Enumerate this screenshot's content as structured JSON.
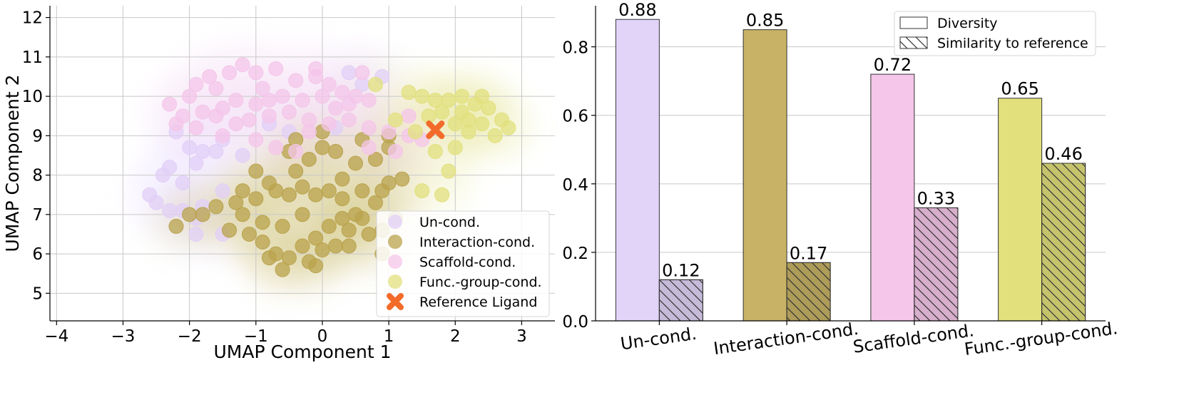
{
  "chart_data": [
    {
      "type": "scatter",
      "title": "",
      "xlabel": "UMAP Component 1",
      "ylabel": "UMAP Component 2",
      "xlim": [
        -4.1,
        3.5
      ],
      "ylim": [
        4.3,
        12.3
      ],
      "xticks": [
        "−4",
        "−3",
        "−2",
        "−1",
        "0",
        "1",
        "2",
        "3"
      ],
      "yticks": [
        "5",
        "6",
        "7",
        "8",
        "9",
        "10",
        "11",
        "12"
      ],
      "grid": true,
      "legend_position": "lower-right",
      "series": [
        {
          "name": "Un-cond.",
          "color": "#e2cff7",
          "points": [
            [
              -2.2,
              9.1
            ],
            [
              -2.0,
              8.7
            ],
            [
              -1.8,
              8.6
            ],
            [
              -1.6,
              8.6
            ],
            [
              -1.9,
              8.3
            ],
            [
              -2.3,
              8.2
            ],
            [
              -2.6,
              7.5
            ],
            [
              -2.5,
              7.3
            ],
            [
              -2.3,
              7.1
            ],
            [
              -2.1,
              7.1
            ],
            [
              -1.9,
              6.9
            ],
            [
              -1.8,
              7.2
            ],
            [
              -1.5,
              8.9
            ],
            [
              -1.2,
              8.5
            ],
            [
              -0.8,
              9.3
            ],
            [
              -0.5,
              9.1
            ],
            [
              0.2,
              9.2
            ],
            [
              0.4,
              10.6
            ],
            [
              0.6,
              10.3
            ],
            [
              0.9,
              10.5
            ],
            [
              -1.9,
              6.5
            ],
            [
              -1.5,
              6.5
            ],
            [
              -2.4,
              8.0
            ],
            [
              -2.1,
              7.8
            ],
            [
              -1.5,
              7.6
            ]
          ]
        },
        {
          "name": "Interaction-cond.",
          "color": "#b9a34c",
          "points": [
            [
              -2.2,
              6.7
            ],
            [
              -2.0,
              7.0
            ],
            [
              -1.8,
              7.0
            ],
            [
              -1.6,
              7.2
            ],
            [
              -1.3,
              7.3
            ],
            [
              -1.2,
              7.6
            ],
            [
              -1.0,
              7.4
            ],
            [
              -0.8,
              7.8
            ],
            [
              -0.7,
              7.6
            ],
            [
              -0.5,
              7.5
            ],
            [
              -0.4,
              8.1
            ],
            [
              -0.3,
              7.7
            ],
            [
              -0.1,
              7.5
            ],
            [
              0.1,
              7.6
            ],
            [
              0.3,
              7.4
            ],
            [
              0.6,
              7.6
            ],
            [
              0.9,
              7.6
            ],
            [
              1.0,
              7.8
            ],
            [
              1.2,
              7.9
            ],
            [
              -1.0,
              8.1
            ],
            [
              -0.5,
              8.6
            ],
            [
              0.0,
              8.7
            ],
            [
              0.2,
              8.6
            ],
            [
              0.5,
              8.3
            ],
            [
              0.8,
              8.4
            ],
            [
              1.0,
              8.7
            ],
            [
              -1.4,
              6.6
            ],
            [
              -1.1,
              6.5
            ],
            [
              -0.9,
              6.3
            ],
            [
              -0.7,
              6.0
            ],
            [
              -0.5,
              5.9
            ],
            [
              -0.3,
              6.2
            ],
            [
              -0.1,
              6.4
            ],
            [
              0.1,
              6.7
            ],
            [
              0.3,
              6.9
            ],
            [
              0.5,
              7.0
            ],
            [
              0.7,
              6.5
            ],
            [
              0.9,
              6.6
            ],
            [
              -0.6,
              5.6
            ],
            [
              -0.8,
              5.9
            ],
            [
              -0.2,
              5.8
            ],
            [
              0.0,
              6.1
            ],
            [
              0.2,
              6.2
            ],
            [
              -1.2,
              7.0
            ],
            [
              -0.9,
              6.8
            ],
            [
              -0.6,
              6.7
            ],
            [
              -0.3,
              7.0
            ],
            [
              0.4,
              6.6
            ],
            [
              0.6,
              6.9
            ],
            [
              0.8,
              7.3
            ],
            [
              -0.1,
              5.7
            ],
            [
              0.4,
              6.2
            ],
            [
              0.9,
              6.0
            ],
            [
              1.1,
              6.9
            ],
            [
              -0.4,
              8.9
            ],
            [
              0.0,
              9.1
            ],
            [
              0.6,
              8.9
            ],
            [
              1.0,
              9.0
            ],
            [
              0.3,
              7.9
            ],
            [
              -0.2,
              8.4
            ]
          ]
        },
        {
          "name": "Scaffold-cond.",
          "color": "#f4c6e9",
          "points": [
            [
              -2.0,
              10.0
            ],
            [
              -1.9,
              10.3
            ],
            [
              -1.7,
              10.5
            ],
            [
              -1.4,
              10.6
            ],
            [
              -1.2,
              10.8
            ],
            [
              -1.0,
              10.6
            ],
            [
              -0.7,
              10.7
            ],
            [
              -0.4,
              10.4
            ],
            [
              -0.1,
              10.5
            ],
            [
              0.1,
              10.3
            ],
            [
              0.3,
              10.1
            ],
            [
              0.5,
              10.0
            ],
            [
              -2.3,
              9.8
            ],
            [
              -2.1,
              9.5
            ],
            [
              -1.8,
              9.6
            ],
            [
              -1.5,
              9.7
            ],
            [
              -1.3,
              9.9
            ],
            [
              -1.0,
              9.8
            ],
            [
              -0.8,
              9.9
            ],
            [
              -0.6,
              10.0
            ],
            [
              -0.3,
              9.9
            ],
            [
              0.0,
              10.0
            ],
            [
              0.2,
              9.7
            ],
            [
              0.4,
              9.8
            ],
            [
              0.7,
              9.9
            ],
            [
              -2.2,
              9.3
            ],
            [
              -1.9,
              9.2
            ],
            [
              -1.6,
              9.5
            ],
            [
              -1.3,
              9.3
            ],
            [
              -1.1,
              9.4
            ],
            [
              -0.8,
              9.5
            ],
            [
              -0.5,
              9.6
            ],
            [
              -0.2,
              9.4
            ],
            [
              0.1,
              9.3
            ],
            [
              0.4,
              9.4
            ],
            [
              0.7,
              9.2
            ],
            [
              1.0,
              9.1
            ],
            [
              1.3,
              9.0
            ],
            [
              -1.0,
              8.9
            ],
            [
              -0.7,
              8.7
            ],
            [
              -0.4,
              8.6
            ],
            [
              0.7,
              8.7
            ],
            [
              1.1,
              8.6
            ],
            [
              1.5,
              8.9
            ],
            [
              1.3,
              9.5
            ],
            [
              -1.6,
              10.2
            ],
            [
              -0.9,
              10.2
            ],
            [
              -0.1,
              10.7
            ],
            [
              0.6,
              10.6
            ],
            [
              -1.5,
              9.0
            ],
            [
              -0.2,
              9.1
            ]
          ]
        },
        {
          "name": "Func.-group-cond.",
          "color": "#e1e07d",
          "points": [
            [
              0.8,
              10.3
            ],
            [
              1.3,
              10.1
            ],
            [
              1.5,
              10.0
            ],
            [
              1.7,
              9.9
            ],
            [
              1.9,
              9.9
            ],
            [
              2.1,
              10.0
            ],
            [
              2.3,
              9.8
            ],
            [
              2.5,
              9.7
            ],
            [
              2.4,
              10.0
            ],
            [
              2.7,
              9.4
            ],
            [
              2.8,
              9.2
            ],
            [
              2.6,
              9.0
            ],
            [
              2.0,
              9.3
            ],
            [
              2.2,
              9.4
            ],
            [
              1.6,
              9.5
            ],
            [
              1.4,
              9.1
            ],
            [
              1.7,
              8.6
            ],
            [
              2.0,
              8.7
            ],
            [
              1.5,
              7.6
            ],
            [
              1.8,
              7.5
            ],
            [
              1.9,
              8.1
            ],
            [
              2.2,
              9.1
            ],
            [
              2.4,
              9.3
            ],
            [
              1.1,
              9.4
            ],
            [
              1.8,
              9.6
            ],
            [
              2.1,
              9.6
            ]
          ]
        }
      ],
      "reference": {
        "name": "Reference Ligand",
        "color": "#f26b2a",
        "x": 1.7,
        "y": 9.15
      }
    },
    {
      "type": "bar",
      "title": "",
      "xlabel": "",
      "ylabel": "",
      "ylim": [
        0,
        0.92
      ],
      "yticks": [
        "0.0",
        "0.2",
        "0.4",
        "0.6",
        "0.8"
      ],
      "grid": true,
      "legend_position": "top-right",
      "categories": [
        "Un-cond.",
        "Interaction-cond.",
        "Scaffold-cond.",
        "Func.-group-cond."
      ],
      "category_colors": [
        "#e2d4f8",
        "#c7b266",
        "#f5c6e9",
        "#e1e07d"
      ],
      "series": [
        {
          "name": "Diversity",
          "hatched": false,
          "values": [
            0.88,
            0.85,
            0.72,
            0.65
          ],
          "labels": [
            "0.88",
            "0.85",
            "0.72",
            "0.65"
          ]
        },
        {
          "name": "Similarity to reference",
          "hatched": true,
          "values": [
            0.12,
            0.17,
            0.33,
            0.46
          ],
          "labels": [
            "0.12",
            "0.17",
            "0.33",
            "0.46"
          ]
        }
      ]
    }
  ]
}
